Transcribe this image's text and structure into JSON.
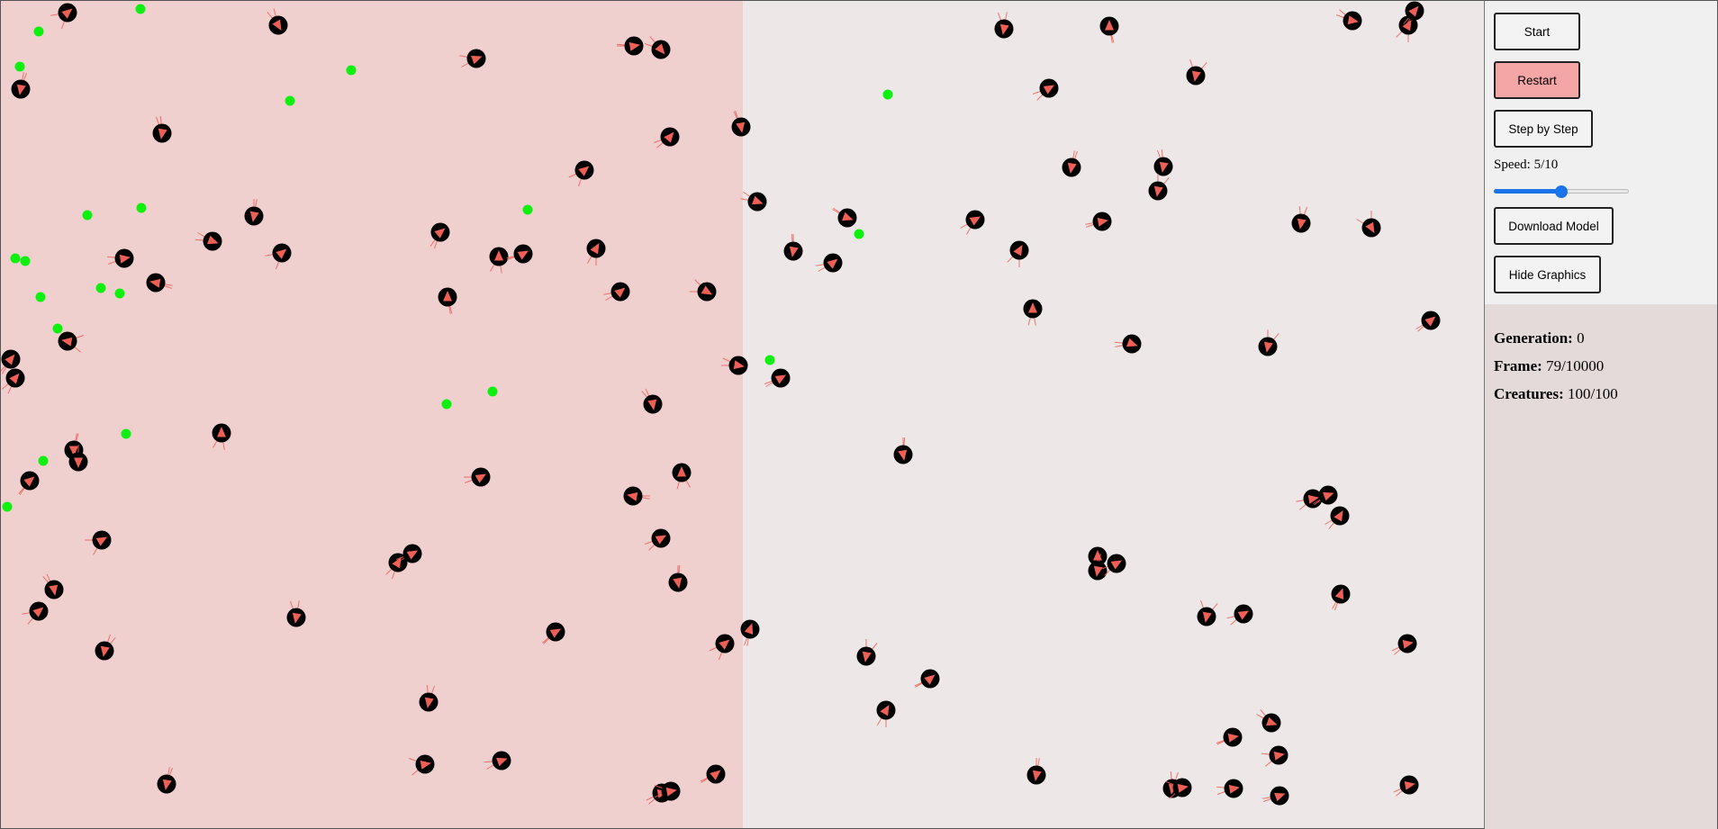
{
  "colors": {
    "left_zone": "#f0cfcf",
    "right_zone": "#ede7e7",
    "food": "#0ef10e",
    "creature_body": "#000000",
    "creature_arrow": "#ee6055",
    "sensor_line": "#ee6055",
    "button_bg": "#f3f3f3",
    "restart_bg": "#f4a6a6",
    "slider_accent": "#1a73e8",
    "controls_bg": "#f0f0f0",
    "stats_bg": "#e5dada"
  },
  "controls": {
    "start_label": "Start",
    "restart_label": "Restart",
    "step_label": "Step by Step",
    "speed_label": "Speed: 5/10",
    "speed_value": 5,
    "speed_max": 10,
    "download_label": "Download Model",
    "hide_graphics_label": "Hide Graphics"
  },
  "stats": {
    "generation_label": "Generation:",
    "generation_value": "0",
    "frame_label": "Frame:",
    "frame_value": "79/10000",
    "creatures_label": "Creatures:",
    "creatures_value": "100/100"
  },
  "icons": {
    "creature": "creature-arrow-icon",
    "food": "food-dot-icon"
  }
}
